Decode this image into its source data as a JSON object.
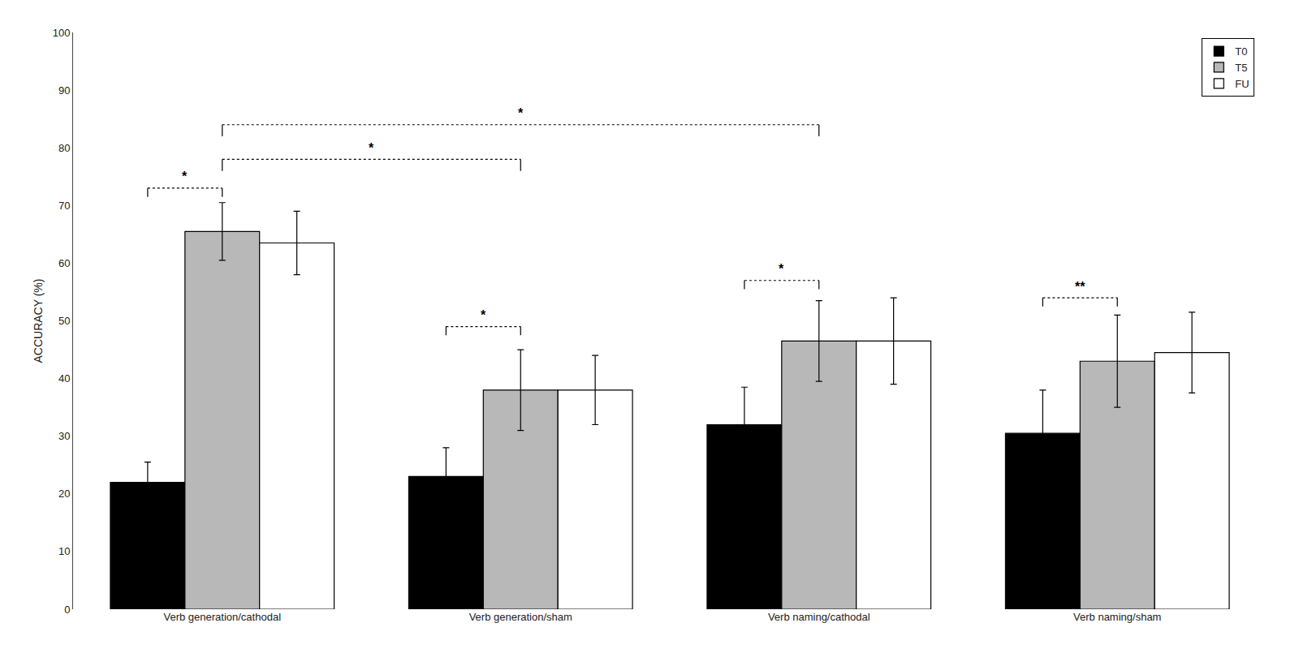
{
  "chart_data": {
    "type": "bar",
    "categories": [
      "Verb generation/cathodal",
      "Verb generation/sham",
      "Verb naming/cathodal",
      "Verb naming/sham"
    ],
    "series": [
      {
        "name": "T0",
        "color": "#000000",
        "values": [
          22.0,
          23.0,
          32.0,
          30.5
        ],
        "errors": [
          3.5,
          5.0,
          6.5,
          7.5
        ]
      },
      {
        "name": "T5",
        "color": "#b8b8b8",
        "values": [
          65.5,
          38.0,
          46.5,
          43.0
        ],
        "errors": [
          5.0,
          7.0,
          7.0,
          8.0
        ]
      },
      {
        "name": "FU",
        "color": "#ffffff",
        "values": [
          63.5,
          38.0,
          46.5,
          44.5
        ],
        "errors": [
          5.5,
          6.0,
          7.5,
          7.0
        ]
      }
    ],
    "ylabel": "ACCURACY (%)",
    "ylim": [
      0,
      100
    ],
    "yticks": [
      0,
      10,
      20,
      30,
      40,
      50,
      60,
      70,
      80,
      90,
      100
    ],
    "grid": false,
    "legend": "upper right",
    "annotations": [
      {
        "text": "*",
        "y": 73,
        "from": {
          "category": "Verb generation/cathodal",
          "series": "T0"
        },
        "to": {
          "category": "Verb generation/cathodal",
          "series": "T5"
        }
      },
      {
        "text": "*",
        "y": 49,
        "from": {
          "category": "Verb generation/sham",
          "series": "T0"
        },
        "to": {
          "category": "Verb generation/sham",
          "series": "T5"
        }
      },
      {
        "text": "*",
        "y": 57,
        "from": {
          "category": "Verb naming/cathodal",
          "series": "T0"
        },
        "to": {
          "category": "Verb naming/cathodal",
          "series": "T5"
        }
      },
      {
        "text": "**",
        "y": 54,
        "from": {
          "category": "Verb naming/sham",
          "series": "T0"
        },
        "to": {
          "category": "Verb naming/sham",
          "series": "T5"
        }
      },
      {
        "text": "*",
        "y": 78,
        "from": {
          "category": "Verb generation/cathodal",
          "series": "T5"
        },
        "to": {
          "category": "Verb generation/sham",
          "series": "T5"
        }
      },
      {
        "text": "*",
        "y": 84,
        "from": {
          "category": "Verb generation/cathodal",
          "series": "T5"
        },
        "to": {
          "category": "Verb naming/cathodal",
          "series": "T5"
        }
      }
    ]
  }
}
